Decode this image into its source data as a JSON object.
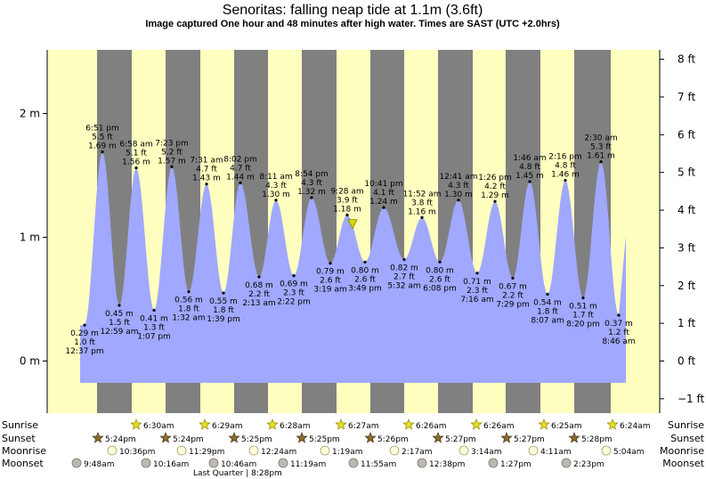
{
  "header": {
    "title": "Senoritas: falling  neap tide at 1.1m (3.6ft)",
    "subtitle": "Image captured One hour and 48 minutes after high water. Times are SAST (UTC +2.0hrs)"
  },
  "chart_data": {
    "type": "area",
    "title": "Senoritas: falling  neap tide at 1.1m (3.6ft)",
    "y_left_unit": "m",
    "y_right_unit": "ft",
    "ylim_m": [
      -0.35,
      2.5
    ],
    "y_left_ticks": [
      "2 m",
      "1 m",
      "0 m"
    ],
    "y_right_ticks": [
      "8 ft",
      "7 ft",
      "6 ft",
      "5 ft",
      "4 ft",
      "3 ft",
      "2 ft",
      "1 ft",
      "0 ft",
      "−1 ft"
    ],
    "colors": {
      "day": "#ffffc0",
      "night": "#808080",
      "water": "#a0a8ff",
      "marker": "#d8d800"
    },
    "tides": [
      {
        "time": "12:37 pm",
        "height_m": 0.29,
        "m_label": "0.29 m",
        "ft_label": "1.0 ft",
        "type": "low"
      },
      {
        "time": "6:51 pm",
        "height_m": 1.69,
        "m_label": "1.69 m",
        "ft_label": "5.5 ft",
        "type": "high"
      },
      {
        "time": "12:59 am",
        "height_m": 0.45,
        "m_label": "0.45 m",
        "ft_label": "1.5 ft",
        "type": "low"
      },
      {
        "time": "6:58 am",
        "height_m": 1.56,
        "m_label": "1.56 m",
        "ft_label": "5.1 ft",
        "type": "high"
      },
      {
        "time": "1:07 pm",
        "height_m": 0.41,
        "m_label": "0.41 m",
        "ft_label": "1.3 ft",
        "type": "low"
      },
      {
        "time": "7:23 pm",
        "height_m": 1.57,
        "m_label": "1.57 m",
        "ft_label": "5.2 ft",
        "type": "high"
      },
      {
        "time": "1:32 am",
        "height_m": 0.56,
        "m_label": "0.56 m",
        "ft_label": "1.8 ft",
        "type": "low"
      },
      {
        "time": "7:31 am",
        "height_m": 1.43,
        "m_label": "1.43 m",
        "ft_label": "4.7 ft",
        "type": "high"
      },
      {
        "time": "1:39 pm",
        "height_m": 0.55,
        "m_label": "0.55 m",
        "ft_label": "1.8 ft",
        "type": "low"
      },
      {
        "time": "8:02 pm",
        "height_m": 1.44,
        "m_label": "1.44 m",
        "ft_label": "4.7 ft",
        "type": "high"
      },
      {
        "time": "2:13 am",
        "height_m": 0.68,
        "m_label": "0.68 m",
        "ft_label": "2.2 ft",
        "type": "low"
      },
      {
        "time": "8:11 am",
        "height_m": 1.3,
        "m_label": "1.30 m",
        "ft_label": "4.3 ft",
        "type": "high"
      },
      {
        "time": "2:22 pm",
        "height_m": 0.69,
        "m_label": "0.69 m",
        "ft_label": "2.3 ft",
        "type": "low"
      },
      {
        "time": "8:54 pm",
        "height_m": 1.32,
        "m_label": "1.32 m",
        "ft_label": "4.3 ft",
        "type": "high"
      },
      {
        "time": "3:19 am",
        "height_m": 0.79,
        "m_label": "0.79 m",
        "ft_label": "2.6 ft",
        "type": "low"
      },
      {
        "time": "9:28 am",
        "height_m": 1.18,
        "m_label": "1.18 m",
        "ft_label": "3.9 ft",
        "type": "high"
      },
      {
        "time": "3:49 pm",
        "height_m": 0.8,
        "m_label": "0.80 m",
        "ft_label": "2.6 ft",
        "type": "low"
      },
      {
        "time": "10:41 pm",
        "height_m": 1.24,
        "m_label": "1.24 m",
        "ft_label": "4.1 ft",
        "type": "high"
      },
      {
        "time": "5:32 am",
        "height_m": 0.82,
        "m_label": "0.82 m",
        "ft_label": "2.7 ft",
        "type": "low"
      },
      {
        "time": "11:52 am",
        "height_m": 1.16,
        "m_label": "1.16 m",
        "ft_label": "3.8 ft",
        "type": "high"
      },
      {
        "time": "6:08 pm",
        "height_m": 0.8,
        "m_label": "0.80 m",
        "ft_label": "2.6 ft",
        "type": "low"
      },
      {
        "time": "12:41 am",
        "height_m": 1.3,
        "m_label": "1.30 m",
        "ft_label": "4.3 ft",
        "type": "high"
      },
      {
        "time": "7:16 am",
        "height_m": 0.71,
        "m_label": "0.71 m",
        "ft_label": "2.3 ft",
        "type": "low"
      },
      {
        "time": "1:26 pm",
        "height_m": 1.29,
        "m_label": "1.29 m",
        "ft_label": "4.2 ft",
        "type": "high"
      },
      {
        "time": "7:29 pm",
        "height_m": 0.67,
        "m_label": "0.67 m",
        "ft_label": "2.2 ft",
        "type": "low"
      },
      {
        "time": "1:46 am",
        "height_m": 1.45,
        "m_label": "1.45 m",
        "ft_label": "4.8 ft",
        "type": "high"
      },
      {
        "time": "8:07 am",
        "height_m": 0.54,
        "m_label": "0.54 m",
        "ft_label": "1.8 ft",
        "type": "low"
      },
      {
        "time": "2:16 pm",
        "height_m": 1.46,
        "m_label": "1.46 m",
        "ft_label": "4.8 ft",
        "type": "high"
      },
      {
        "time": "8:20 pm",
        "height_m": 0.51,
        "m_label": "0.51 m",
        "ft_label": "1.7 ft",
        "type": "low"
      },
      {
        "time": "2:30 am",
        "height_m": 1.61,
        "m_label": "1.61 m",
        "ft_label": "5.3 ft",
        "type": "high"
      },
      {
        "time": "8:46 am",
        "height_m": 0.37,
        "m_label": "0.37 m",
        "ft_label": "1.2 ft",
        "type": "low"
      }
    ],
    "current_level": {
      "height_m": 1.1,
      "label": "1.1m (3.6ft)"
    },
    "rows": {
      "sunrise": {
        "label": "Sunrise",
        "times": [
          "6:30am",
          "6:29am",
          "6:28am",
          "6:27am",
          "6:26am",
          "6:26am",
          "6:25am",
          "6:24am"
        ]
      },
      "sunset": {
        "label": "Sunset",
        "times": [
          "5:24pm",
          "5:24pm",
          "5:25pm",
          "5:25pm",
          "5:26pm",
          "5:27pm",
          "5:27pm",
          "5:28pm"
        ]
      },
      "moonrise": {
        "label": "Moonrise",
        "times": [
          "10:36pm",
          "11:29pm",
          "12:24am",
          "1:19am",
          "2:17am",
          "3:14am",
          "4:11am",
          "5:04am"
        ]
      },
      "moonset": {
        "label": "Moonset",
        "times": [
          "9:48am",
          "10:16am",
          "10:46am",
          "11:19am",
          "11:55am",
          "12:38pm",
          "1:27pm",
          "2:23pm"
        ]
      }
    },
    "moon_phase_note": "Last Quarter | 8:28pm"
  }
}
